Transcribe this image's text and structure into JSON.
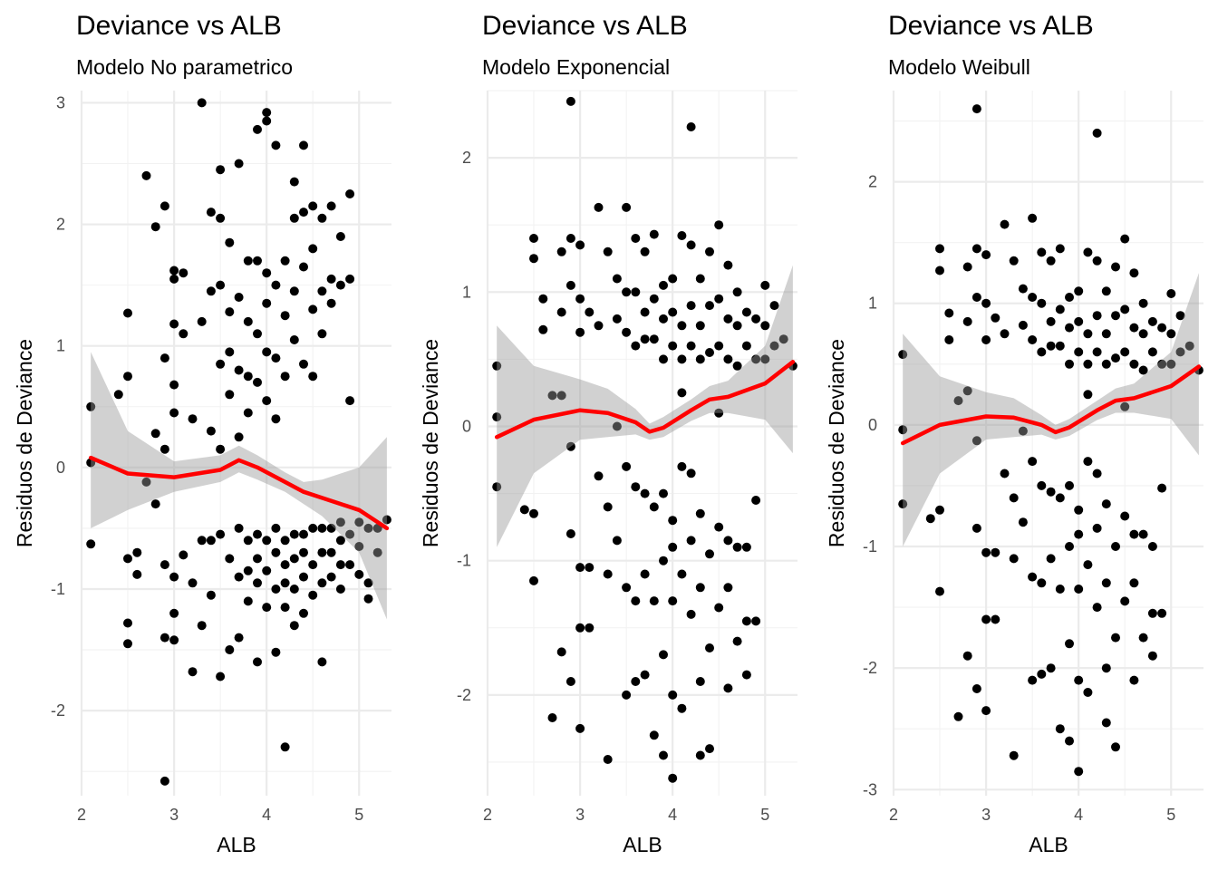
{
  "colors": {
    "points": "#000000",
    "smooth_line": "#ff0000",
    "ribbon": "#999999",
    "grid": "#ebebeb"
  },
  "chart_data": [
    {
      "type": "scatter",
      "title": "Deviance vs  ALB",
      "subtitle": "Modelo No parametrico",
      "xlabel": "ALB",
      "ylabel": "Residuos de Deviance",
      "xlim": [
        2.0,
        5.35
      ],
      "ylim": [
        -2.7,
        3.1
      ],
      "xticks": [
        2,
        3,
        4,
        5
      ],
      "yticks": [
        -2,
        -1,
        0,
        1,
        2,
        3
      ],
      "grid": true,
      "legend": "none",
      "smooth": {
        "x": [
          2.1,
          2.5,
          3.0,
          3.5,
          3.7,
          3.9,
          4.2,
          4.4,
          4.6,
          5.0,
          5.3
        ],
        "y": [
          0.08,
          -0.05,
          -0.08,
          -0.02,
          0.06,
          0.0,
          -0.12,
          -0.2,
          -0.25,
          -0.35,
          -0.5
        ],
        "lower": [
          -0.5,
          -0.35,
          -0.2,
          -0.12,
          -0.04,
          -0.1,
          -0.2,
          -0.3,
          -0.4,
          -0.7,
          -1.25
        ],
        "upper": [
          0.95,
          0.3,
          0.05,
          0.1,
          0.18,
          0.1,
          -0.04,
          -0.12,
          -0.1,
          0.0,
          0.25
        ]
      },
      "points": {
        "x": [
          2.1,
          2.1,
          2.1,
          2.4,
          2.5,
          2.5,
          2.5,
          2.5,
          2.5,
          2.6,
          2.6,
          2.7,
          2.7,
          2.8,
          2.8,
          2.8,
          2.9,
          2.9,
          2.9,
          2.9,
          2.9,
          2.9,
          3.0,
          3.0,
          3.0,
          3.0,
          3.0,
          3.0,
          3.0,
          3.0,
          3.1,
          3.1,
          3.1,
          3.2,
          3.2,
          3.2,
          3.3,
          3.3,
          3.3,
          3.3,
          3.4,
          3.4,
          3.4,
          3.4,
          3.4,
          3.5,
          3.5,
          3.5,
          3.5,
          3.5,
          3.5,
          3.5,
          3.6,
          3.6,
          3.6,
          3.6,
          3.6,
          3.6,
          3.7,
          3.7,
          3.7,
          3.7,
          3.7,
          3.7,
          3.7,
          3.8,
          3.8,
          3.8,
          3.8,
          3.8,
          3.8,
          3.8,
          3.9,
          3.9,
          3.9,
          3.9,
          3.9,
          3.9,
          3.9,
          3.9,
          4.0,
          4.0,
          4.0,
          4.0,
          4.0,
          4.0,
          4.0,
          4.0,
          4.0,
          4.1,
          4.1,
          4.1,
          4.1,
          4.1,
          4.1,
          4.1,
          4.1,
          4.2,
          4.2,
          4.2,
          4.2,
          4.2,
          4.2,
          4.2,
          4.2,
          4.3,
          4.3,
          4.3,
          4.3,
          4.3,
          4.3,
          4.3,
          4.3,
          4.4,
          4.4,
          4.4,
          4.4,
          4.4,
          4.4,
          4.4,
          4.4,
          4.5,
          4.5,
          4.5,
          4.5,
          4.5,
          4.5,
          4.5,
          4.6,
          4.6,
          4.6,
          4.6,
          4.6,
          4.6,
          4.6,
          4.7,
          4.7,
          4.7,
          4.7,
          4.7,
          4.7,
          4.8,
          4.8,
          4.8,
          4.8,
          4.8,
          4.8,
          4.9,
          4.9,
          4.9,
          4.9,
          4.9,
          5.0,
          5.0,
          5.0,
          5.1,
          5.1,
          5.1,
          5.2,
          5.2,
          5.3
        ],
        "y": [
          0.5,
          0.04,
          -0.63,
          0.6,
          0.75,
          1.27,
          -1.28,
          -0.75,
          -1.45,
          -0.7,
          -0.88,
          2.4,
          -0.12,
          1.98,
          0.28,
          -0.3,
          2.15,
          0.9,
          0.15,
          -1.4,
          -0.8,
          -2.58,
          1.62,
          1.55,
          1.18,
          0.45,
          0.68,
          -0.9,
          -1.42,
          -1.2,
          1.6,
          1.1,
          -0.72,
          0.4,
          -0.95,
          -1.68,
          3.0,
          1.2,
          -1.3,
          -0.6,
          2.1,
          1.45,
          0.3,
          -0.6,
          -1.05,
          2.45,
          2.05,
          1.5,
          0.85,
          0.15,
          -0.55,
          -1.72,
          1.85,
          1.28,
          0.95,
          0.6,
          -0.75,
          -1.5,
          2.5,
          1.4,
          0.8,
          0.25,
          -0.5,
          -0.9,
          -1.4,
          1.7,
          1.2,
          0.75,
          0.45,
          -0.6,
          -0.85,
          -1.1,
          2.78,
          1.7,
          1.1,
          0.7,
          -0.55,
          -0.75,
          -0.95,
          -1.6,
          2.92,
          2.85,
          1.6,
          1.35,
          0.95,
          0.55,
          -0.6,
          -0.85,
          -1.15,
          2.65,
          1.5,
          0.9,
          0.4,
          -0.5,
          -0.7,
          -1.0,
          -1.52,
          1.7,
          1.25,
          0.75,
          -0.6,
          -0.8,
          -0.95,
          -1.15,
          -2.3,
          2.35,
          2.05,
          1.45,
          1.05,
          -0.55,
          -0.75,
          -1.0,
          -1.3,
          2.65,
          2.1,
          1.65,
          0.85,
          -0.55,
          -0.7,
          -0.9,
          -1.2,
          2.15,
          1.8,
          1.3,
          0.75,
          -0.5,
          -0.8,
          -1.05,
          2.05,
          1.45,
          1.1,
          -0.5,
          -0.7,
          -0.95,
          -1.6,
          2.15,
          1.55,
          1.35,
          -0.5,
          -0.7,
          -0.9,
          1.9,
          1.5,
          -0.45,
          -0.6,
          -0.8,
          -1.0,
          2.25,
          1.55,
          0.55,
          -0.55,
          -0.8,
          -0.45,
          -0.65,
          -0.88,
          -0.5,
          -0.95,
          -1.08,
          -0.5,
          -0.7,
          -0.43
        ]
      }
    },
    {
      "type": "scatter",
      "title": "Deviance vs  ALB",
      "subtitle": "Modelo Exponencial",
      "xlabel": "ALB",
      "ylabel": "Residuos de Deviance",
      "xlim": [
        2.0,
        5.35
      ],
      "ylim": [
        -2.75,
        2.5
      ],
      "xticks": [
        2,
        3,
        4,
        5
      ],
      "yticks": [
        -2,
        -1,
        0,
        1,
        2
      ],
      "grid": true,
      "legend": "none",
      "smooth": {
        "x": [
          2.1,
          2.5,
          3.0,
          3.3,
          3.6,
          3.75,
          3.9,
          4.2,
          4.4,
          4.6,
          5.0,
          5.3
        ],
        "y": [
          -0.08,
          0.05,
          0.12,
          0.1,
          0.03,
          -0.04,
          -0.01,
          0.12,
          0.2,
          0.22,
          0.32,
          0.48
        ],
        "lower": [
          -0.9,
          -0.35,
          -0.1,
          -0.08,
          -0.06,
          -0.1,
          -0.08,
          0.04,
          0.1,
          0.1,
          0.05,
          -0.2
        ],
        "upper": [
          0.75,
          0.45,
          0.35,
          0.28,
          0.13,
          0.02,
          0.07,
          0.2,
          0.3,
          0.34,
          0.6,
          1.2
        ]
      },
      "points": {
        "x": [
          2.1,
          2.1,
          2.1,
          2.4,
          2.5,
          2.5,
          2.5,
          2.5,
          2.6,
          2.6,
          2.7,
          2.7,
          2.8,
          2.8,
          2.8,
          2.8,
          2.9,
          2.9,
          2.9,
          2.9,
          2.9,
          2.9,
          3.0,
          3.0,
          3.0,
          3.0,
          3.0,
          3.0,
          3.1,
          3.1,
          3.1,
          3.2,
          3.2,
          3.2,
          3.3,
          3.3,
          3.3,
          3.3,
          3.4,
          3.4,
          3.4,
          3.4,
          3.5,
          3.5,
          3.5,
          3.5,
          3.5,
          3.5,
          3.6,
          3.6,
          3.6,
          3.6,
          3.6,
          3.6,
          3.7,
          3.7,
          3.7,
          3.7,
          3.7,
          3.7,
          3.8,
          3.8,
          3.8,
          3.8,
          3.8,
          3.8,
          3.9,
          3.9,
          3.9,
          3.9,
          3.9,
          3.9,
          3.9,
          4.0,
          4.0,
          4.0,
          4.0,
          4.0,
          4.0,
          4.0,
          4.0,
          4.1,
          4.1,
          4.1,
          4.1,
          4.1,
          4.1,
          4.1,
          4.2,
          4.2,
          4.2,
          4.2,
          4.2,
          4.2,
          4.2,
          4.3,
          4.3,
          4.3,
          4.3,
          4.3,
          4.3,
          4.3,
          4.4,
          4.4,
          4.4,
          4.4,
          4.4,
          4.4,
          4.5,
          4.5,
          4.5,
          4.5,
          4.5,
          4.5,
          4.6,
          4.6,
          4.6,
          4.6,
          4.6,
          4.6,
          4.7,
          4.7,
          4.7,
          4.7,
          4.7,
          4.8,
          4.8,
          4.8,
          4.8,
          4.8,
          4.9,
          4.9,
          4.9,
          4.9,
          5.0,
          5.0,
          5.0,
          5.1,
          5.1,
          5.2,
          5.3
        ],
        "y": [
          0.45,
          0.07,
          -0.45,
          -0.62,
          1.4,
          1.25,
          -0.65,
          -1.15,
          0.95,
          0.72,
          0.23,
          -2.17,
          1.3,
          0.85,
          0.23,
          -1.68,
          2.42,
          1.4,
          1.05,
          -0.15,
          -0.8,
          -1.9,
          1.35,
          0.95,
          0.7,
          -1.05,
          -1.5,
          -2.25,
          0.85,
          -1.05,
          -1.5,
          1.63,
          0.75,
          -0.37,
          1.3,
          -0.6,
          -1.1,
          -2.48,
          1.1,
          0.8,
          0.0,
          -0.85,
          1.63,
          1.0,
          0.7,
          -0.3,
          -1.2,
          -2.0,
          1.4,
          1.0,
          0.6,
          -0.45,
          -1.3,
          -1.9,
          1.3,
          0.85,
          0.65,
          -0.5,
          -1.1,
          -1.85,
          1.43,
          0.95,
          0.65,
          -0.6,
          -1.3,
          -2.3,
          1.05,
          0.8,
          0.5,
          -0.5,
          -1.0,
          -1.7,
          -2.45,
          1.1,
          0.85,
          0.6,
          -0.7,
          -0.9,
          -1.3,
          -2.0,
          -2.62,
          1.42,
          0.75,
          0.5,
          0.25,
          -0.3,
          -1.1,
          -2.1,
          2.23,
          1.35,
          0.9,
          0.6,
          -0.35,
          -0.85,
          -1.4,
          1.1,
          0.75,
          0.5,
          -0.65,
          -1.2,
          -1.9,
          -2.45,
          1.3,
          0.9,
          0.55,
          -0.95,
          -1.65,
          -2.4,
          1.5,
          0.95,
          0.6,
          0.1,
          -0.75,
          -1.35,
          1.2,
          0.8,
          0.5,
          -0.85,
          -1.2,
          -1.95,
          1.0,
          0.75,
          0.45,
          -0.9,
          -1.6,
          0.85,
          0.6,
          -0.9,
          -1.45,
          -1.85,
          0.8,
          0.5,
          -0.55,
          -1.45,
          1.05,
          0.75,
          0.5,
          0.9,
          0.6,
          0.65,
          0.45
        ]
      }
    },
    {
      "type": "scatter",
      "title": "Deviance vs  ALB",
      "subtitle": "Modelo Weibull",
      "xlabel": "ALB",
      "ylabel": "Residuos de Deviance",
      "xlim": [
        2.0,
        5.35
      ],
      "ylim": [
        -3.05,
        2.75
      ],
      "xticks": [
        2,
        3,
        4,
        5
      ],
      "yticks": [
        -3,
        -2,
        -1,
        0,
        1,
        2
      ],
      "grid": true,
      "legend": "none",
      "smooth": {
        "x": [
          2.1,
          2.5,
          3.0,
          3.3,
          3.6,
          3.75,
          3.9,
          4.2,
          4.4,
          4.6,
          5.0,
          5.3
        ],
        "y": [
          -0.15,
          0.0,
          0.07,
          0.06,
          0.0,
          -0.06,
          -0.02,
          0.12,
          0.2,
          0.22,
          0.32,
          0.48
        ],
        "lower": [
          -1.0,
          -0.4,
          -0.12,
          -0.1,
          -0.08,
          -0.12,
          -0.09,
          0.04,
          0.1,
          0.1,
          0.05,
          -0.25
        ],
        "upper": [
          0.75,
          0.4,
          0.27,
          0.22,
          0.08,
          0.0,
          0.05,
          0.2,
          0.3,
          0.34,
          0.6,
          1.25
        ]
      },
      "points": {
        "x": [
          2.1,
          2.1,
          2.1,
          2.4,
          2.5,
          2.5,
          2.5,
          2.5,
          2.6,
          2.6,
          2.7,
          2.7,
          2.8,
          2.8,
          2.8,
          2.8,
          2.9,
          2.9,
          2.9,
          2.9,
          2.9,
          2.9,
          3.0,
          3.0,
          3.0,
          3.0,
          3.0,
          3.0,
          3.1,
          3.1,
          3.1,
          3.2,
          3.2,
          3.2,
          3.3,
          3.3,
          3.3,
          3.3,
          3.4,
          3.4,
          3.4,
          3.4,
          3.5,
          3.5,
          3.5,
          3.5,
          3.5,
          3.5,
          3.6,
          3.6,
          3.6,
          3.6,
          3.6,
          3.6,
          3.7,
          3.7,
          3.7,
          3.7,
          3.7,
          3.7,
          3.8,
          3.8,
          3.8,
          3.8,
          3.8,
          3.8,
          3.9,
          3.9,
          3.9,
          3.9,
          3.9,
          3.9,
          3.9,
          4.0,
          4.0,
          4.0,
          4.0,
          4.0,
          4.0,
          4.0,
          4.0,
          4.1,
          4.1,
          4.1,
          4.1,
          4.1,
          4.1,
          4.1,
          4.2,
          4.2,
          4.2,
          4.2,
          4.2,
          4.2,
          4.2,
          4.3,
          4.3,
          4.3,
          4.3,
          4.3,
          4.3,
          4.3,
          4.4,
          4.4,
          4.4,
          4.4,
          4.4,
          4.4,
          4.5,
          4.5,
          4.5,
          4.5,
          4.5,
          4.5,
          4.6,
          4.6,
          4.6,
          4.6,
          4.6,
          4.6,
          4.7,
          4.7,
          4.7,
          4.7,
          4.7,
          4.8,
          4.8,
          4.8,
          4.8,
          4.8,
          4.9,
          4.9,
          4.9,
          4.9,
          5.0,
          5.0,
          5.0,
          5.1,
          5.1,
          5.2,
          5.3
        ],
        "y": [
          0.58,
          -0.04,
          -0.65,
          -0.77,
          1.45,
          1.27,
          -0.7,
          -1.37,
          0.92,
          0.7,
          0.2,
          -2.4,
          1.3,
          0.85,
          0.28,
          -1.9,
          2.6,
          1.45,
          1.05,
          -0.13,
          -0.85,
          -2.17,
          1.4,
          1.0,
          0.7,
          -1.05,
          -1.6,
          -2.35,
          0.88,
          -1.05,
          -1.6,
          1.65,
          0.75,
          -0.4,
          1.35,
          -0.6,
          -1.1,
          -2.72,
          1.12,
          0.82,
          -0.05,
          -0.8,
          1.7,
          1.05,
          0.7,
          -0.3,
          -1.25,
          -2.1,
          1.42,
          1.0,
          0.6,
          -0.5,
          -1.3,
          -2.05,
          1.35,
          0.85,
          0.65,
          -0.55,
          -1.1,
          -2.0,
          1.45,
          0.95,
          0.65,
          -0.6,
          -1.35,
          -2.5,
          1.05,
          0.8,
          0.5,
          -0.5,
          -1.0,
          -1.8,
          -2.6,
          1.1,
          0.85,
          0.6,
          -0.7,
          -0.9,
          -1.35,
          -2.1,
          -2.85,
          1.42,
          0.75,
          0.5,
          0.25,
          -0.3,
          -1.15,
          -2.2,
          2.4,
          1.35,
          0.9,
          0.6,
          -0.4,
          -0.85,
          -1.5,
          1.1,
          0.75,
          0.5,
          -0.65,
          -1.3,
          -2.0,
          -2.45,
          1.3,
          0.9,
          0.55,
          -1.0,
          -1.75,
          -2.65,
          1.53,
          0.95,
          0.6,
          0.15,
          -0.75,
          -1.45,
          1.25,
          0.8,
          0.5,
          -0.9,
          -1.3,
          -2.1,
          1.0,
          0.75,
          0.45,
          -0.9,
          -1.75,
          0.85,
          0.6,
          -1.0,
          -1.55,
          -1.9,
          0.8,
          0.5,
          -0.52,
          -1.55,
          1.08,
          0.75,
          0.5,
          0.9,
          0.6,
          0.65,
          0.45
        ]
      }
    }
  ]
}
